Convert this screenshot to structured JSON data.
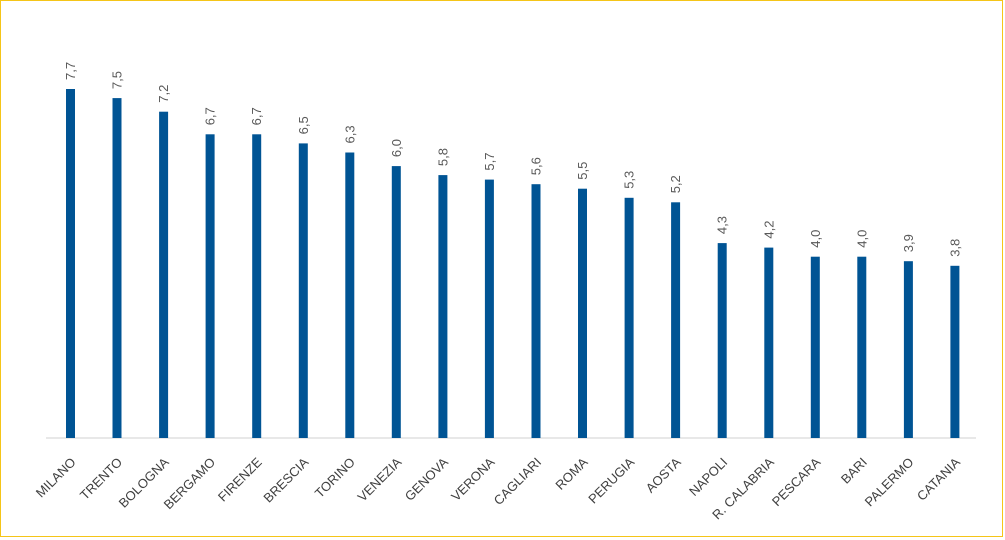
{
  "chart_data": {
    "type": "bar",
    "title": "",
    "xlabel": "",
    "ylabel": "",
    "categories": [
      "MILANO",
      "TRENTO",
      "BOLOGNA",
      "BERGAMO",
      "FIRENZE",
      "BRESCIA",
      "TORINO",
      "VENEZIA",
      "GENOVA",
      "VERONA",
      "CAGLIARI",
      "ROMA",
      "PERUGIA",
      "AOSTA",
      "NAPOLI",
      "R. CALABRIA",
      "PESCARA",
      "BARI",
      "PALERMO",
      "CATANIA"
    ],
    "values": [
      7.7,
      7.5,
      7.2,
      6.7,
      6.7,
      6.5,
      6.3,
      6.0,
      5.8,
      5.7,
      5.6,
      5.5,
      5.3,
      5.2,
      4.3,
      4.2,
      4.0,
      4.0,
      3.9,
      3.8
    ],
    "value_labels": [
      "7,7",
      "7,5",
      "7,2",
      "6,7",
      "6,7",
      "6,5",
      "6,3",
      "6,0",
      "5,8",
      "5,7",
      "5,6",
      "5,5",
      "5,3",
      "5,2",
      "4,3",
      "4,2",
      "4,0",
      "4,0",
      "3,9",
      "3,8"
    ],
    "ylim": [
      0,
      7.7
    ],
    "grid": false,
    "legend": "none",
    "colors": {
      "bar": "#005494",
      "frame": "#f5c518",
      "value_label": "#595959",
      "category_label": "#404040",
      "axis": "#d0d0d0"
    }
  }
}
